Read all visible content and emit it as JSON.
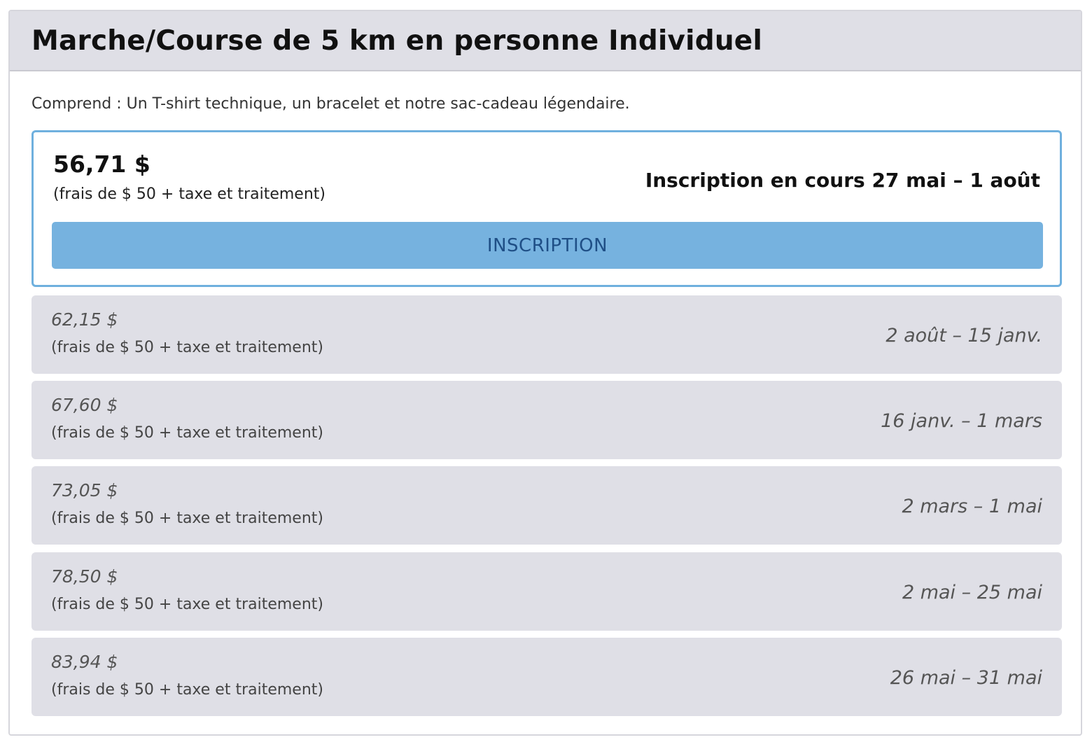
{
  "card": {
    "title": "Marche/Course de 5 km en personne Individuel",
    "includes": "Comprend : Un T-shirt technique, un bracelet et notre sac-cadeau légendaire."
  },
  "current_tier": {
    "price": "56,71 $",
    "fee_note": "(frais de $ 50 + taxe et traitement)",
    "dates": "Inscription en cours 27 mai – 1 août",
    "register_label": "INSCRIPTION"
  },
  "future_tiers": [
    {
      "price": "62,15 $",
      "fee_note": "(frais de $ 50 + taxe et traitement)",
      "dates": "2 août – 15 janv."
    },
    {
      "price": "67,60 $",
      "fee_note": "(frais de $ 50 + taxe et traitement)",
      "dates": "16 janv. – 1 mars"
    },
    {
      "price": "73,05 $",
      "fee_note": "(frais de $ 50 + taxe et traitement)",
      "dates": "2 mars – 1 mai"
    },
    {
      "price": "78,50 $",
      "fee_note": "(frais de $ 50 + taxe et traitement)",
      "dates": "2 mai – 25 mai"
    },
    {
      "price": "83,94 $",
      "fee_note": "(frais de $ 50 + taxe et traitement)",
      "dates": "26 mai – 31 mai"
    }
  ],
  "colors": {
    "header_bg": "#dfdfe6",
    "future_tier_bg": "#dfdfe6",
    "active_border": "#6fb0de",
    "button_bg": "#76b2df",
    "button_text": "#1f4f86"
  }
}
